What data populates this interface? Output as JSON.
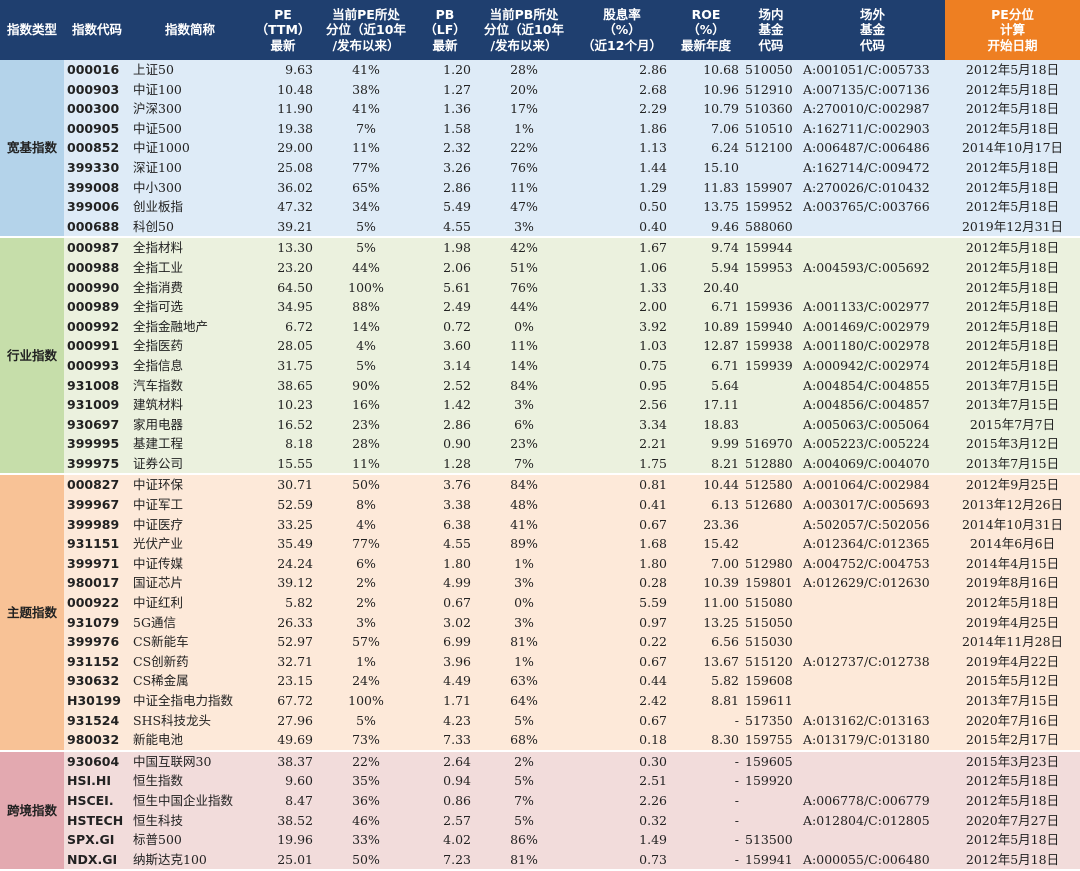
{
  "colors": {
    "header": "#1f3f6f",
    "header_accent": "#ee7f22",
    "group_1": "#deebf7",
    "group_1_cat": "#b4d3ea",
    "group_2": "#ebf1de",
    "group_2_cat": "#c6deaa",
    "group_3": "#fde9d9",
    "group_3_cat": "#f8c296",
    "group_4": "#f2dcdb",
    "group_4_cat": "#e3a9b0"
  },
  "headers": [
    "指数类型",
    "指数代码",
    "指数简称",
    "PE\n（TTM）\n最新",
    "当前PE所处\n分位（近10年\n/发布以来）",
    "PB\n（LF）\n最新",
    "当前PB所处\n分位（近10年\n/发布以来）",
    "股息率\n（%）\n（近12个月）",
    "ROE\n（%）\n最新年度",
    "场内\n基金\n代码",
    "场外\n基金\n代码",
    "PE分位\n计算\n开始日期"
  ],
  "groups": [
    {
      "category": "宽基指数",
      "rows": [
        [
          "000016",
          "上证50",
          "9.63",
          "41%",
          "1.20",
          "28%",
          "2.86",
          "10.68",
          "510050",
          "A:001051/C:005733",
          "2012年5月18日"
        ],
        [
          "000903",
          "中证100",
          "10.48",
          "38%",
          "1.27",
          "20%",
          "2.68",
          "10.96",
          "512910",
          "A:007135/C:007136",
          "2012年5月18日"
        ],
        [
          "000300",
          "沪深300",
          "11.90",
          "41%",
          "1.36",
          "17%",
          "2.29",
          "10.79",
          "510360",
          "A:270010/C:002987",
          "2012年5月18日"
        ],
        [
          "000905",
          "中证500",
          "19.38",
          "7%",
          "1.58",
          "1%",
          "1.86",
          "7.06",
          "510510",
          "A:162711/C:002903",
          "2012年5月18日"
        ],
        [
          "000852",
          "中证1000",
          "29.00",
          "11%",
          "2.32",
          "22%",
          "1.13",
          "6.24",
          "512100",
          "A:006487/C:006486",
          "2014年10月17日"
        ],
        [
          "399330",
          "深证100",
          "25.08",
          "77%",
          "3.26",
          "76%",
          "1.44",
          "15.10",
          "",
          "A:162714/C:009472",
          "2012年5月18日"
        ],
        [
          "399008",
          "中小300",
          "36.02",
          "65%",
          "2.86",
          "11%",
          "1.29",
          "11.83",
          "159907",
          "A:270026/C:010432",
          "2012年5月18日"
        ],
        [
          "399006",
          "创业板指",
          "47.32",
          "34%",
          "5.49",
          "47%",
          "0.50",
          "13.75",
          "159952",
          "A:003765/C:003766",
          "2012年5月18日"
        ],
        [
          "000688",
          "科创50",
          "39.21",
          "5%",
          "4.55",
          "3%",
          "0.40",
          "9.46",
          "588060",
          "",
          "2019年12月31日"
        ]
      ]
    },
    {
      "category": "行业指数",
      "rows": [
        [
          "000987",
          "全指材料",
          "13.30",
          "5%",
          "1.98",
          "42%",
          "1.67",
          "9.74",
          "159944",
          "",
          "2012年5月18日"
        ],
        [
          "000988",
          "全指工业",
          "23.20",
          "44%",
          "2.06",
          "51%",
          "1.06",
          "5.94",
          "159953",
          "A:004593/C:005692",
          "2012年5月18日"
        ],
        [
          "000990",
          "全指消费",
          "64.50",
          "100%",
          "5.61",
          "76%",
          "1.33",
          "20.40",
          "",
          "",
          "2012年5月18日"
        ],
        [
          "000989",
          "全指可选",
          "34.95",
          "88%",
          "2.49",
          "44%",
          "2.00",
          "6.71",
          "159936",
          "A:001133/C:002977",
          "2012年5月18日"
        ],
        [
          "000992",
          "全指金融地产",
          "6.72",
          "14%",
          "0.72",
          "0%",
          "3.92",
          "10.89",
          "159940",
          "A:001469/C:002979",
          "2012年5月18日"
        ],
        [
          "000991",
          "全指医药",
          "28.05",
          "4%",
          "3.60",
          "11%",
          "1.03",
          "12.87",
          "159938",
          "A:001180/C:002978",
          "2012年5月18日"
        ],
        [
          "000993",
          "全指信息",
          "31.75",
          "5%",
          "3.14",
          "14%",
          "0.75",
          "6.71",
          "159939",
          "A:000942/C:002974",
          "2012年5月18日"
        ],
        [
          "931008",
          "汽车指数",
          "38.65",
          "90%",
          "2.52",
          "84%",
          "0.95",
          "5.64",
          "",
          "A:004854/C:004855",
          "2013年7月15日"
        ],
        [
          "931009",
          "建筑材料",
          "10.23",
          "16%",
          "1.42",
          "3%",
          "2.56",
          "17.11",
          "",
          "A:004856/C:004857",
          "2013年7月15日"
        ],
        [
          "930697",
          "家用电器",
          "16.52",
          "23%",
          "2.86",
          "6%",
          "3.34",
          "18.83",
          "",
          "A:005063/C:005064",
          "2015年7月7日"
        ],
        [
          "399995",
          "基建工程",
          "8.18",
          "28%",
          "0.90",
          "23%",
          "2.21",
          "9.99",
          "516970",
          "A:005223/C:005224",
          "2015年3月12日"
        ],
        [
          "399975",
          "证券公司",
          "15.55",
          "11%",
          "1.28",
          "7%",
          "1.75",
          "8.21",
          "512880",
          "A:004069/C:004070",
          "2013年7月15日"
        ]
      ]
    },
    {
      "category": "主题指数",
      "rows": [
        [
          "000827",
          "中证环保",
          "30.71",
          "50%",
          "3.76",
          "84%",
          "0.81",
          "10.44",
          "512580",
          "A:001064/C:002984",
          "2012年9月25日"
        ],
        [
          "399967",
          "中证军工",
          "52.59",
          "8%",
          "3.38",
          "48%",
          "0.41",
          "6.13",
          "512680",
          "A:003017/C:005693",
          "2013年12月26日"
        ],
        [
          "399989",
          "中证医疗",
          "33.25",
          "4%",
          "6.38",
          "41%",
          "0.67",
          "23.36",
          "",
          "A:502057/C:502056",
          "2014年10月31日"
        ],
        [
          "931151",
          "光伏产业",
          "35.49",
          "77%",
          "4.55",
          "89%",
          "1.68",
          "15.42",
          "",
          "A:012364/C:012365",
          "2014年6月6日"
        ],
        [
          "399971",
          "中证传媒",
          "24.24",
          "6%",
          "1.80",
          "1%",
          "1.80",
          "7.00",
          "512980",
          "A:004752/C:004753",
          "2014年4月15日"
        ],
        [
          "980017",
          "国证芯片",
          "39.12",
          "2%",
          "4.99",
          "3%",
          "0.28",
          "10.39",
          "159801",
          "A:012629/C:012630",
          "2019年8月16日"
        ],
        [
          "000922",
          "中证红利",
          "5.82",
          "2%",
          "0.67",
          "0%",
          "5.59",
          "11.00",
          "515080",
          "",
          "2012年5月18日"
        ],
        [
          "931079",
          "5G通信",
          "26.33",
          "3%",
          "3.02",
          "3%",
          "0.97",
          "13.25",
          "515050",
          "",
          "2019年4月25日"
        ],
        [
          "399976",
          "CS新能车",
          "52.97",
          "57%",
          "6.99",
          "81%",
          "0.22",
          "6.56",
          "515030",
          "",
          "2014年11月28日"
        ],
        [
          "931152",
          "CS创新药",
          "32.71",
          "1%",
          "3.96",
          "1%",
          "0.67",
          "13.67",
          "515120",
          "A:012737/C:012738",
          "2019年4月22日"
        ],
        [
          "930632",
          "CS稀金属",
          "23.15",
          "24%",
          "4.49",
          "63%",
          "0.44",
          "5.82",
          "159608",
          "",
          "2015年5月12日"
        ],
        [
          "H30199",
          "中证全指电力指数",
          "67.72",
          "100%",
          "1.71",
          "64%",
          "2.42",
          "8.81",
          "159611",
          "",
          "2013年7月15日"
        ],
        [
          "931524",
          "SHS科技龙头",
          "27.96",
          "5%",
          "4.23",
          "5%",
          "0.67",
          "-",
          "517350",
          "A:013162/C:013163",
          "2020年7月16日"
        ],
        [
          "980032",
          "新能电池",
          "49.69",
          "73%",
          "7.33",
          "68%",
          "0.18",
          "8.30",
          "159755",
          "A:013179/C:013180",
          "2015年2月17日"
        ]
      ]
    },
    {
      "category": "跨境指数",
      "rows": [
        [
          "930604",
          "中国互联网30",
          "38.37",
          "22%",
          "2.64",
          "2%",
          "0.30",
          "-",
          "159605",
          "",
          "2015年3月23日"
        ],
        [
          "HSI.HI",
          "恒生指数",
          "9.60",
          "35%",
          "0.94",
          "5%",
          "2.51",
          "-",
          "159920",
          "",
          "2012年5月18日"
        ],
        [
          "HSCEI.",
          "恒生中国企业指数",
          "8.47",
          "36%",
          "0.86",
          "7%",
          "2.26",
          "-",
          "",
          "A:006778/C:006779",
          "2012年5月18日"
        ],
        [
          "HSTECH",
          "恒生科技",
          "38.52",
          "46%",
          "2.57",
          "5%",
          "0.32",
          "-",
          "",
          "A:012804/C:012805",
          "2020年7月27日"
        ],
        [
          "SPX.GI",
          "标普500",
          "19.96",
          "33%",
          "4.02",
          "86%",
          "1.49",
          "-",
          "513500",
          "",
          "2012年5月18日"
        ],
        [
          "NDX.GI",
          "纳斯达克100",
          "25.01",
          "50%",
          "7.23",
          "81%",
          "0.73",
          "-",
          "159941",
          "A:000055/C:006480",
          "2012年5月18日"
        ]
      ]
    }
  ]
}
